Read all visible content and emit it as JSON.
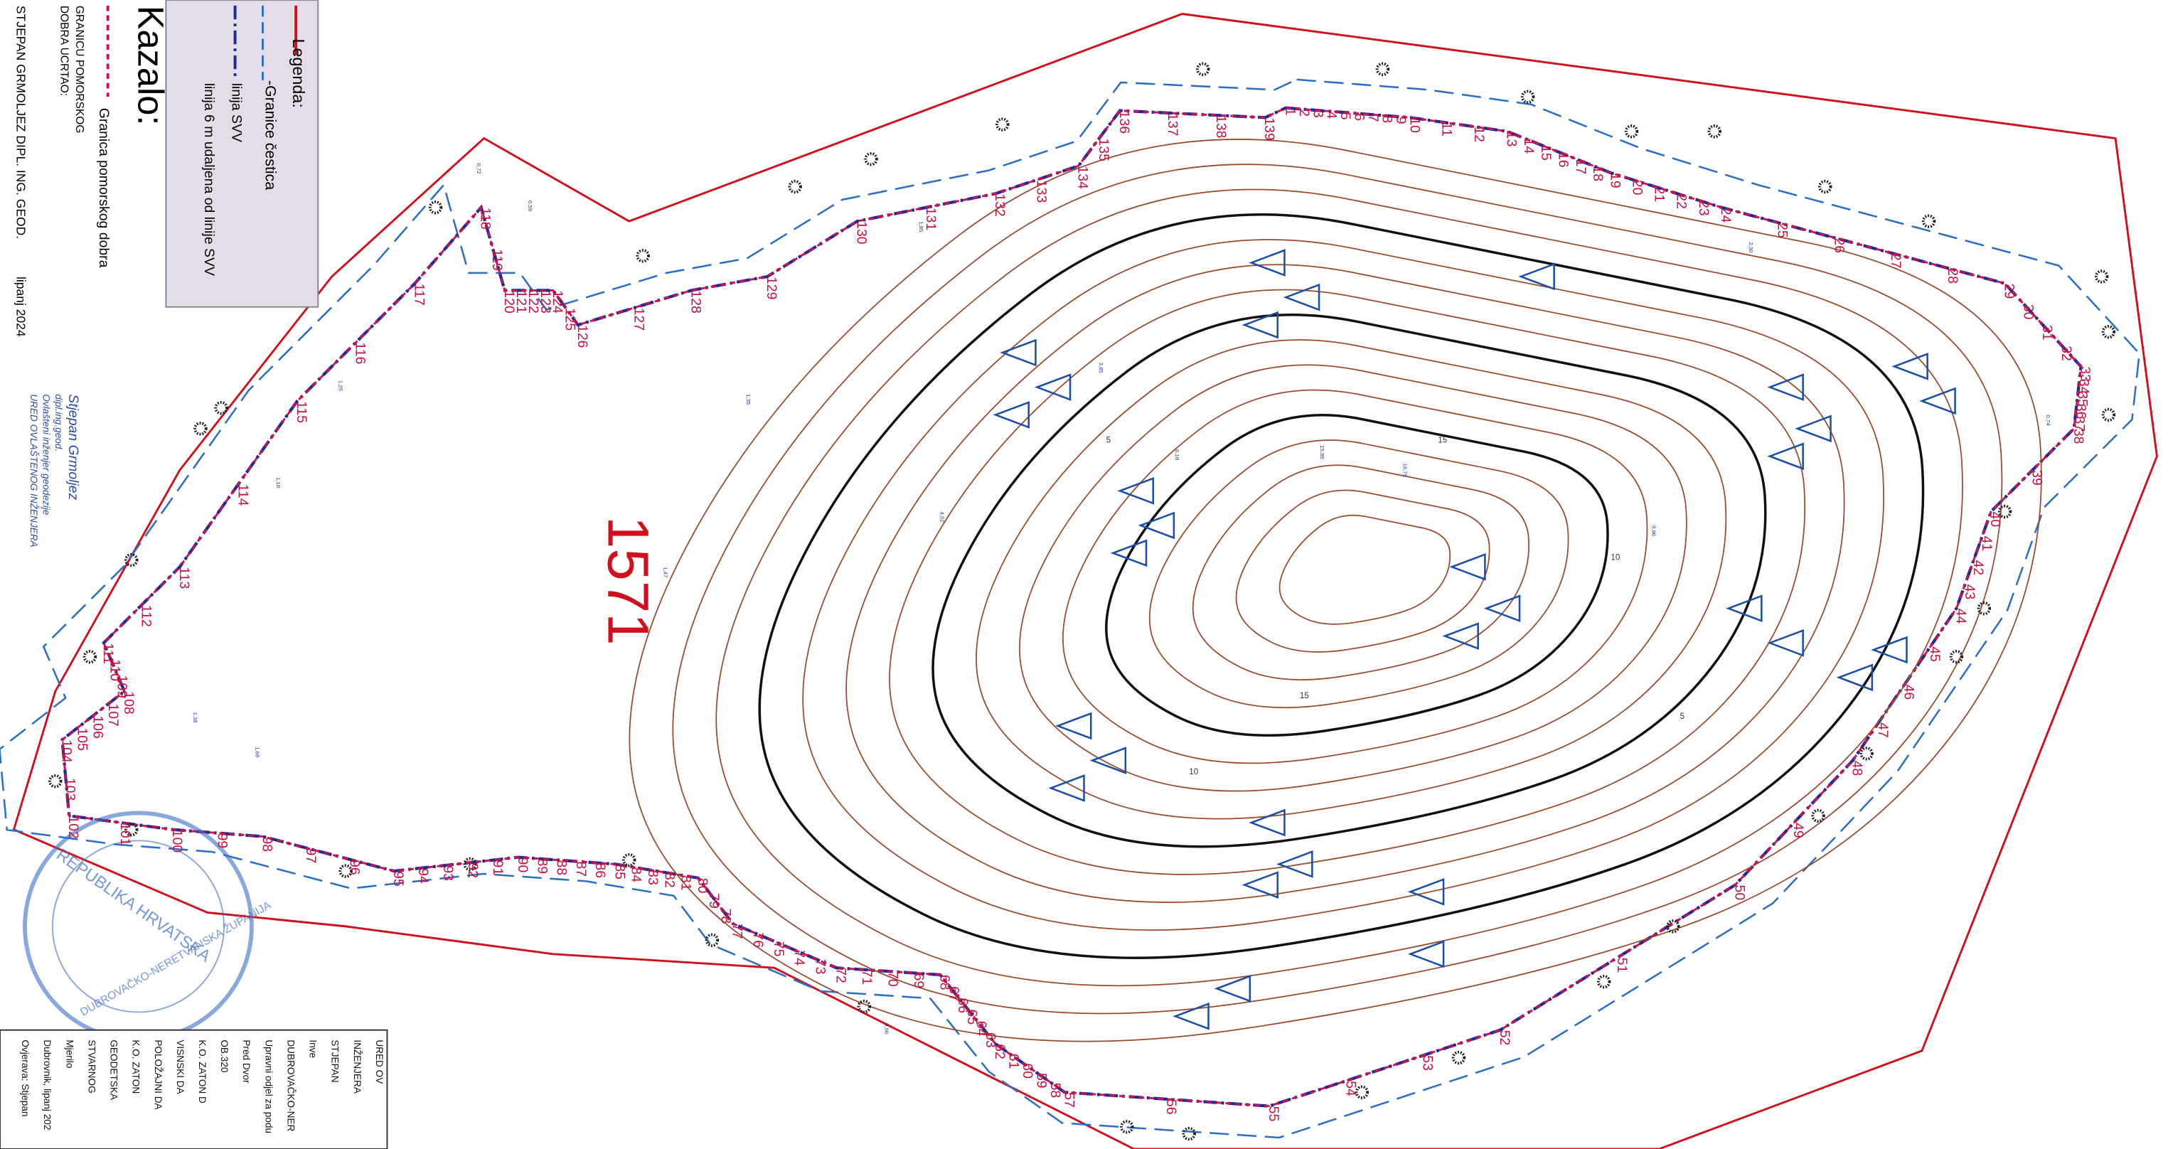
{
  "legend": {
    "title": "Legenda:",
    "items": [
      "-Granice čestica",
      "linija SVV",
      "linija 6 m udaljena od linije SVV"
    ]
  },
  "kazalo": {
    "title": "Kazalo:",
    "line": "Granica pomorskog dobra",
    "drawn_by": [
      "GRANICU POMORSKOG",
      "DOBRA UCRTAO:"
    ],
    "author": "STJEPAN GRMOLJEZ DIPL. ING. GEOD.",
    "date": "lipanj 2024"
  },
  "signature": [
    "Stjepan Grmoljez",
    "dipl.ing.geod.",
    "Ovlašteni inženjer geodezije",
    "URED OVLAŠTENOG INŽENJERA"
  ],
  "stamp": [
    "REPUBLIKA HRVATSKA",
    "DUBROVAČKO-NERETVANSKA ŽUPANIJA"
  ],
  "title_block": [
    "URED OV",
    "INŽENJERA",
    "STJEPAN",
    "Inve",
    "DUBROVAČKO-NER",
    "Upravni odjel za podu",
    "Pred Dvor",
    "OB.320",
    "K.O. ZATON D",
    "VISNSKI DA",
    "POLOŽAJNI DA",
    "K.O. ZATON",
    "GEODETSKA",
    "STVARNOG",
    "Mjerilo",
    "Dubrovnik, lipanj 202",
    "Ovjerava: Stjepan"
  ],
  "parcel": "1571",
  "point_labels": [
    1,
    2,
    3,
    4,
    5,
    6,
    7,
    8,
    9,
    10,
    11,
    12,
    13,
    14,
    15,
    16,
    17,
    18,
    19,
    20,
    21,
    22,
    23,
    24,
    25,
    26,
    27,
    28,
    29,
    30,
    31,
    32,
    33,
    34,
    35,
    36,
    37,
    38,
    39,
    40,
    41,
    42,
    43,
    44,
    45,
    46,
    47,
    48,
    49,
    50,
    51,
    52,
    53,
    54,
    55,
    56,
    57,
    58,
    59,
    60,
    61,
    62,
    63,
    64,
    65,
    66,
    67,
    68,
    69,
    70,
    71,
    72,
    73,
    74,
    75,
    76,
    77,
    78,
    79,
    80,
    81,
    82,
    83,
    84,
    85,
    86,
    87,
    88,
    89,
    90,
    91,
    92,
    93,
    94,
    95,
    96,
    97,
    98,
    99,
    100,
    101,
    102,
    103,
    104,
    105,
    106,
    107,
    108,
    109,
    110,
    111,
    112,
    113,
    114,
    115,
    116,
    117,
    118,
    119,
    120,
    121,
    122,
    123,
    124,
    125,
    126,
    127,
    128,
    129,
    130,
    131,
    132,
    133,
    134,
    135,
    136,
    137,
    138,
    139
  ],
  "contour_labels": [
    5,
    10,
    15,
    5,
    10,
    15
  ],
  "spot_heights": [
    "0,72",
    "0,59",
    "1,25",
    "1,18",
    "1,38",
    "1,68",
    "1,47",
    "1,85",
    "2,30",
    "3,85",
    "6,18",
    "15,86",
    "18,75",
    "8,96",
    "4,52",
    "1,35",
    "0,74",
    "0,56"
  ]
}
